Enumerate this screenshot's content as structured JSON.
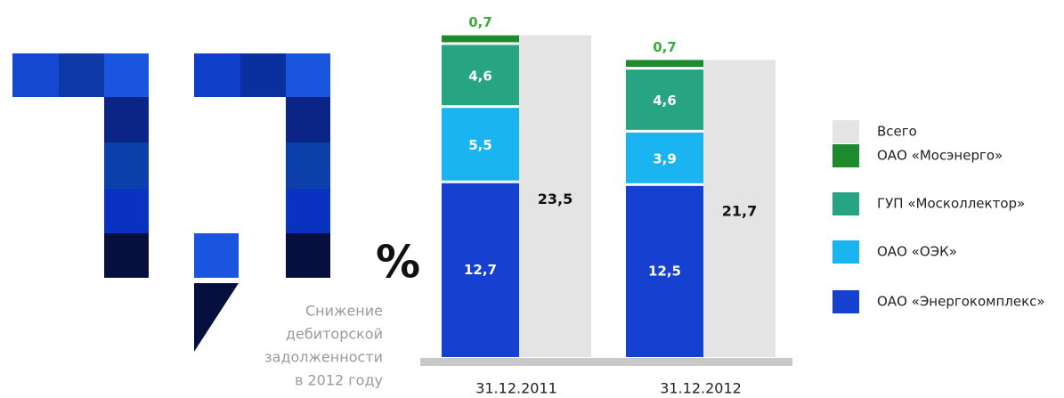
{
  "chart_data": {
    "type": "stacked-bar",
    "categories": [
      "31.12.2011",
      "31.12.2012"
    ],
    "series": [
      {
        "name": "ОАО «Энергокомплекс»",
        "color": "#1540d0",
        "values": [
          12.7,
          12.5
        ],
        "value_labels": [
          "12,7",
          "12,5"
        ]
      },
      {
        "name": "ОАО «ОЭК»",
        "color": "#1ab4f0",
        "values": [
          5.5,
          3.9
        ],
        "value_labels": [
          "5,5",
          "3,9"
        ]
      },
      {
        "name": "ГУП «Москоллектор»",
        "color": "#27a481",
        "values": [
          4.6,
          4.6
        ],
        "value_labels": [
          "4,6",
          "4,6"
        ]
      },
      {
        "name": "ОАО «Мосэнерго»",
        "color": "#1e8a2e",
        "values": [
          0.7,
          0.7
        ],
        "value_labels": [
          "0,7",
          "0,7"
        ]
      }
    ],
    "total": {
      "name": "Всего",
      "color": "#e4e4e4",
      "values": [
        23.5,
        21.7
      ],
      "value_labels": [
        "23,5",
        "21,7"
      ]
    },
    "ylim": [
      0,
      24
    ],
    "headline": {
      "value": 7.7,
      "symbol": "%",
      "caption": [
        "Снижение",
        "дебиторской",
        "задолженности",
        "в 2012 году"
      ]
    }
  }
}
